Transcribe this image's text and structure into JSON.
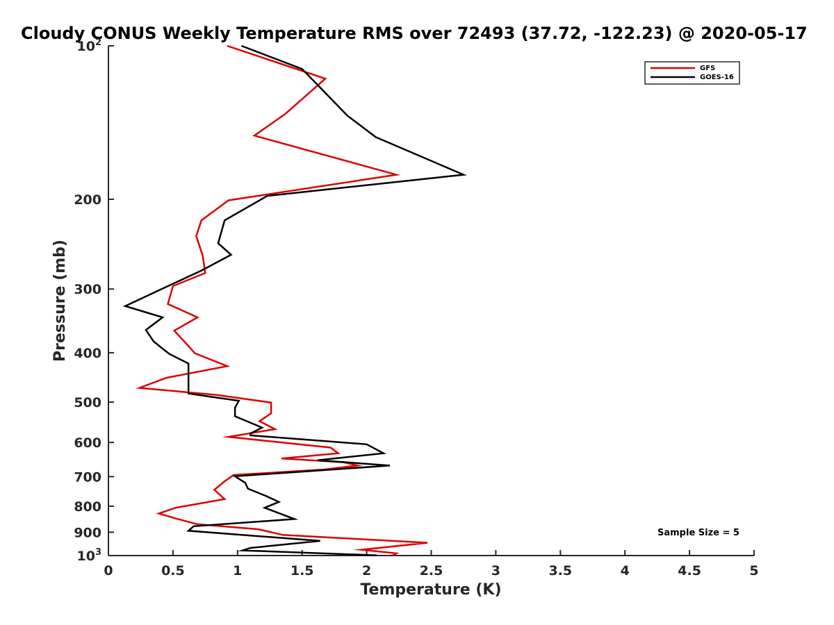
{
  "chart_data": {
    "type": "line",
    "title": "Cloudy CONUS Weekly Temperature RMS over 72493 (37.72, -122.23) @ 2020-05-17",
    "xlabel": "Temperature (K)",
    "ylabel": "Pressure (mb)",
    "xlim": [
      0,
      5
    ],
    "ylim": [
      100,
      1000
    ],
    "y_scale": "log",
    "y_reversed": true,
    "x_ticks": [
      "0",
      "0.5",
      "1",
      "1.5",
      "2",
      "2.5",
      "3",
      "3.5",
      "4",
      "4.5",
      "5"
    ],
    "y_ticks": [
      {
        "base": "10",
        "exp": "2",
        "value": 100
      },
      {
        "label": "200",
        "value": 200
      },
      {
        "label": "300",
        "value": 300
      },
      {
        "label": "400",
        "value": 400
      },
      {
        "label": "500",
        "value": 500
      },
      {
        "label": "600",
        "value": 600
      },
      {
        "label": "700",
        "value": 700
      },
      {
        "label": "800",
        "value": 800
      },
      {
        "label": "900",
        "value": 900
      },
      {
        "base": "10",
        "exp": "3",
        "value": 1000
      }
    ],
    "grid": false,
    "legend_position": "top-right",
    "annotation": "Sample Size = 5",
    "series": [
      {
        "name": "GFS",
        "color": "#dd0000",
        "points": [
          [
            0.92,
            100
          ],
          [
            1.68,
            116
          ],
          [
            1.37,
            136
          ],
          [
            1.13,
            150
          ],
          [
            2.23,
            179
          ],
          [
            0.93,
            201
          ],
          [
            0.72,
            220
          ],
          [
            0.68,
            236
          ],
          [
            0.73,
            258
          ],
          [
            0.75,
            279
          ],
          [
            0.5,
            296
          ],
          [
            0.46,
            321
          ],
          [
            0.69,
            341
          ],
          [
            0.51,
            362
          ],
          [
            0.67,
            401
          ],
          [
            0.92,
            425
          ],
          [
            0.45,
            448
          ],
          [
            0.24,
            469
          ],
          [
            0.84,
            484
          ],
          [
            1.26,
            501
          ],
          [
            1.26,
            526
          ],
          [
            1.17,
            545
          ],
          [
            1.29,
            565
          ],
          [
            0.93,
            585
          ],
          [
            1.72,
            614
          ],
          [
            1.78,
            630
          ],
          [
            1.34,
            645
          ],
          [
            1.82,
            656
          ],
          [
            1.93,
            666
          ],
          [
            1.67,
            678
          ],
          [
            0.97,
            695
          ],
          [
            0.9,
            715
          ],
          [
            0.82,
            743
          ],
          [
            0.9,
            775
          ],
          [
            0.52,
            806
          ],
          [
            0.39,
            827
          ],
          [
            0.53,
            847
          ],
          [
            0.69,
            868
          ],
          [
            1.16,
            888
          ],
          [
            1.35,
            911
          ],
          [
            2.47,
            944
          ],
          [
            1.96,
            974
          ],
          [
            2.23,
            990
          ],
          [
            2.2,
            999
          ]
        ]
      },
      {
        "name": "GOES-16",
        "color": "#000000",
        "points": [
          [
            1.03,
            100
          ],
          [
            1.5,
            111
          ],
          [
            1.85,
            137
          ],
          [
            2.07,
            151
          ],
          [
            2.75,
            179
          ],
          [
            1.23,
            197
          ],
          [
            0.9,
            220
          ],
          [
            0.85,
            244
          ],
          [
            0.95,
            257
          ],
          [
            0.72,
            276
          ],
          [
            0.4,
            301
          ],
          [
            0.13,
            324
          ],
          [
            0.42,
            341
          ],
          [
            0.29,
            361
          ],
          [
            0.35,
            380
          ],
          [
            0.47,
            402
          ],
          [
            0.62,
            420
          ],
          [
            0.62,
            481
          ],
          [
            1.01,
            497
          ],
          [
            0.98,
            513
          ],
          [
            0.98,
            533
          ],
          [
            1.19,
            561
          ],
          [
            1.1,
            576
          ],
          [
            1.1,
            581
          ],
          [
            2.0,
            605
          ],
          [
            2.13,
            630
          ],
          [
            1.62,
            650
          ],
          [
            2.18,
            666
          ],
          [
            0.98,
            699
          ],
          [
            1.06,
            720
          ],
          [
            1.08,
            739
          ],
          [
            1.22,
            764
          ],
          [
            1.32,
            785
          ],
          [
            1.21,
            806
          ],
          [
            1.44,
            848
          ],
          [
            0.66,
            876
          ],
          [
            0.62,
            894
          ],
          [
            1.64,
            936
          ],
          [
            1.1,
            966
          ],
          [
            1.04,
            977
          ],
          [
            2.08,
            999
          ]
        ]
      }
    ]
  }
}
